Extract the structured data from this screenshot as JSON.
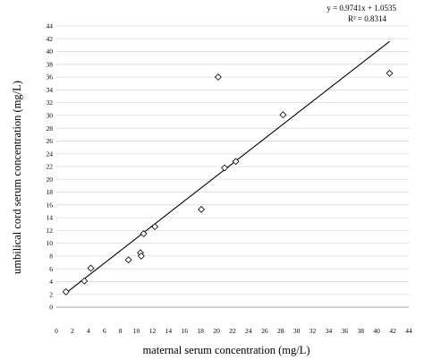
{
  "chart_data": {
    "type": "scatter",
    "xlabel": "maternal serum concentration (mg/L)",
    "ylabel": "umbilical cord serum concentration (mg/L)",
    "xlim": [
      0,
      44
    ],
    "ylim": [
      0,
      44
    ],
    "xticks": [
      0,
      2,
      4,
      6,
      8,
      10,
      12,
      14,
      16,
      18,
      20,
      22,
      24,
      26,
      28,
      30,
      32,
      34,
      36,
      38,
      40,
      42,
      44
    ],
    "yticks": [
      0,
      2,
      4,
      6,
      8,
      10,
      12,
      14,
      16,
      18,
      20,
      22,
      24,
      26,
      28,
      30,
      32,
      34,
      36,
      38,
      40,
      42,
      44
    ],
    "grid": "horizontal",
    "marker": "open-diamond",
    "points": [
      {
        "x": 1.2,
        "y": 2.4
      },
      {
        "x": 3.5,
        "y": 4.1
      },
      {
        "x": 4.3,
        "y": 6.1
      },
      {
        "x": 9.0,
        "y": 7.4
      },
      {
        "x": 10.5,
        "y": 8.5
      },
      {
        "x": 10.6,
        "y": 8.0
      },
      {
        "x": 10.9,
        "y": 11.5
      },
      {
        "x": 12.3,
        "y": 12.6
      },
      {
        "x": 18.1,
        "y": 15.3
      },
      {
        "x": 20.2,
        "y": 36.0
      },
      {
        "x": 21.0,
        "y": 21.8
      },
      {
        "x": 22.4,
        "y": 22.8
      },
      {
        "x": 28.3,
        "y": 30.1
      },
      {
        "x": 41.6,
        "y": 36.6
      }
    ],
    "trendline": {
      "slope": 0.9741,
      "intercept": 1.0535,
      "x_range": [
        1.2,
        41.6
      ],
      "equation": "y = 0.9741x + 1.0535",
      "r_squared": "R² = 0.8314"
    }
  }
}
